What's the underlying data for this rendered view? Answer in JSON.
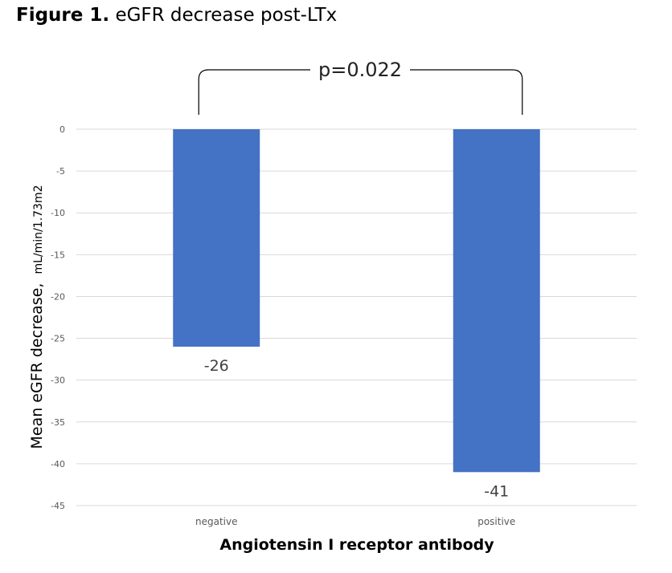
{
  "figure": {
    "label": "Figure 1.",
    "title": "eGFR decrease post-LTx"
  },
  "chart_data": {
    "type": "bar",
    "categories": [
      "negative",
      "positive"
    ],
    "values": [
      -26,
      -41
    ],
    "data_labels": [
      "-26",
      "-41"
    ],
    "xlabel": "Angiotensin I receptor antibody",
    "ylabel_main": "Mean eGFR decrease,",
    "ylabel_unit": "mL/min/1.73m2",
    "ylim": [
      -45,
      0
    ],
    "yticks": [
      0,
      -5,
      -10,
      -15,
      -20,
      -25,
      -30,
      -35,
      -40,
      -45
    ],
    "grid": true,
    "legend": "none",
    "bar_color": "#4472C4",
    "grid_color": "#D9D9D9",
    "annotation": {
      "text": "p=0.022",
      "between": [
        "negative",
        "positive"
      ]
    }
  }
}
